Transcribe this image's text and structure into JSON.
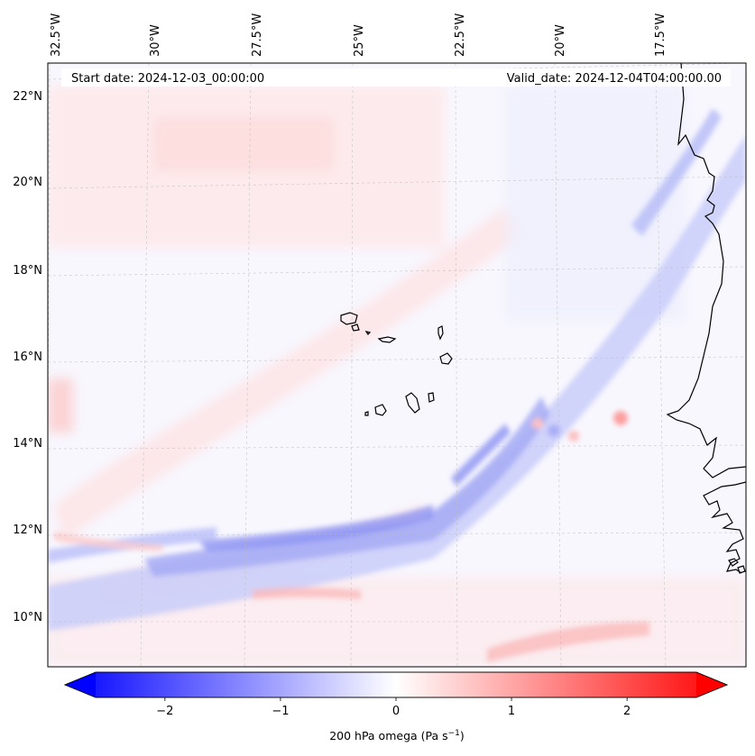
{
  "map": {
    "start_date_text": "Start date: 2024-12-03_00:00:00",
    "valid_date_text": "Valid_date: 2024-12-04T04:00:00.00",
    "lon_labels": [
      "32.5°W",
      "30°W",
      "27.5°W",
      "25°W",
      "22.5°W",
      "20°W",
      "17.5°W"
    ],
    "lat_labels": [
      "22°N",
      "20°N",
      "18°N",
      "16°N",
      "14°N",
      "12°N",
      "10°N"
    ],
    "colors": {
      "positive": "#ff0000",
      "negative": "#0000ff",
      "neutral": "#ffffff",
      "coastline": "#000000"
    }
  },
  "colorbar": {
    "title_text": "200 hPa omega (Pa s",
    "title_exponent": "−1",
    "title_close": ")",
    "min": -2.6,
    "max": 2.6,
    "ticks": [
      {
        "value": -2,
        "label": "−2"
      },
      {
        "value": -1,
        "label": "−1"
      },
      {
        "value": 0,
        "label": "0"
      },
      {
        "value": 1,
        "label": "1"
      },
      {
        "value": 2,
        "label": "2"
      }
    ]
  }
}
